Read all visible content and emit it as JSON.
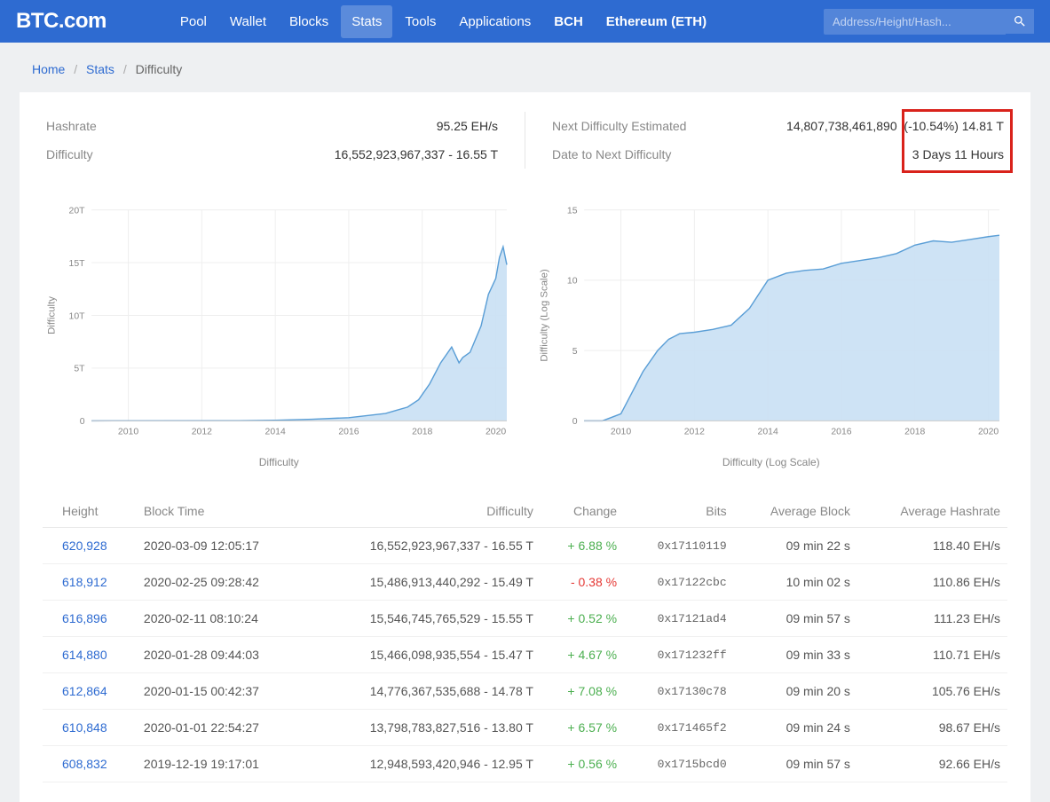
{
  "header": {
    "logo": "BTC.com",
    "nav": [
      "Pool",
      "Wallet",
      "Blocks",
      "Stats",
      "Tools",
      "Applications",
      "BCH",
      "Ethereum (ETH)"
    ],
    "active_nav": 3,
    "bold_nav": [
      6,
      7
    ],
    "search_placeholder": "Address/Height/Hash..."
  },
  "breadcrumbs": {
    "home": "Home",
    "stats": "Stats",
    "current": "Difficulty"
  },
  "stats": {
    "hashrate_label": "Hashrate",
    "hashrate_value": "95.25 EH/s",
    "difficulty_label": "Difficulty",
    "difficulty_value": "16,552,923,967,337 - 16.55 T",
    "next_diff_label": "Next Difficulty Estimated",
    "next_diff_raw": "14,807,738,461,890",
    "next_diff_change": "(-10.54%) 14.81 T",
    "date_next_label": "Date to Next Difficulty",
    "date_next_value": "3 Days 11 Hours"
  },
  "chart1": {
    "type": "area",
    "title": "Difficulty",
    "y_label": "Difficulty",
    "y_ticks": [
      "0",
      "5T",
      "10T",
      "15T",
      "20T"
    ],
    "x_ticks": [
      "2010",
      "2012",
      "2014",
      "2016",
      "2018",
      "2020"
    ],
    "ylim": [
      0,
      20
    ],
    "xlim": [
      2009,
      2020.3
    ],
    "background": "#ffffff",
    "area_color": "#c9e0f4",
    "line_color": "#5a9ed6",
    "grid_color": "#eeeeee",
    "text_color": "#888888",
    "label_fontsize": 12,
    "tick_fontsize": 11,
    "data": [
      [
        2009,
        0
      ],
      [
        2013,
        0.01
      ],
      [
        2014,
        0.05
      ],
      [
        2015,
        0.15
      ],
      [
        2016,
        0.3
      ],
      [
        2016.5,
        0.5
      ],
      [
        2017,
        0.7
      ],
      [
        2017.3,
        1.0
      ],
      [
        2017.6,
        1.3
      ],
      [
        2017.9,
        2.0
      ],
      [
        2018.2,
        3.5
      ],
      [
        2018.5,
        5.5
      ],
      [
        2018.8,
        7.0
      ],
      [
        2019,
        5.5
      ],
      [
        2019.1,
        6.0
      ],
      [
        2019.3,
        6.5
      ],
      [
        2019.6,
        9.0
      ],
      [
        2019.8,
        12.0
      ],
      [
        2020,
        13.5
      ],
      [
        2020.1,
        15.5
      ],
      [
        2020.2,
        16.5
      ],
      [
        2020.3,
        14.8
      ]
    ]
  },
  "chart2": {
    "type": "area",
    "title": "Difficulty (Log Scale)",
    "y_label": "Difficulty (Log Scale)",
    "y_ticks": [
      "0",
      "5",
      "10",
      "15"
    ],
    "x_ticks": [
      "2010",
      "2012",
      "2014",
      "2016",
      "2018",
      "2020"
    ],
    "ylim": [
      0,
      15
    ],
    "xlim": [
      2009,
      2020.3
    ],
    "background": "#ffffff",
    "area_color": "#c9e0f4",
    "line_color": "#5a9ed6",
    "grid_color": "#eeeeee",
    "text_color": "#888888",
    "label_fontsize": 12,
    "tick_fontsize": 11,
    "data": [
      [
        2009,
        0
      ],
      [
        2009.5,
        0
      ],
      [
        2010,
        0.5
      ],
      [
        2010.3,
        2.0
      ],
      [
        2010.6,
        3.5
      ],
      [
        2011,
        5.0
      ],
      [
        2011.3,
        5.8
      ],
      [
        2011.6,
        6.2
      ],
      [
        2012,
        6.3
      ],
      [
        2012.5,
        6.5
      ],
      [
        2013,
        6.8
      ],
      [
        2013.5,
        8.0
      ],
      [
        2014,
        10.0
      ],
      [
        2014.5,
        10.5
      ],
      [
        2015,
        10.7
      ],
      [
        2015.5,
        10.8
      ],
      [
        2016,
        11.2
      ],
      [
        2016.5,
        11.4
      ],
      [
        2017,
        11.6
      ],
      [
        2017.5,
        11.9
      ],
      [
        2018,
        12.5
      ],
      [
        2018.5,
        12.8
      ],
      [
        2019,
        12.7
      ],
      [
        2019.5,
        12.9
      ],
      [
        2020,
        13.1
      ],
      [
        2020.3,
        13.2
      ]
    ]
  },
  "table": {
    "columns": [
      "Height",
      "Block Time",
      "Difficulty",
      "Change",
      "Bits",
      "Average Block",
      "Average Hashrate"
    ],
    "rows": [
      {
        "height": "620,928",
        "time": "2020-03-09 12:05:17",
        "diff": "16,552,923,967,337 - 16.55 T",
        "change": "+ 6.88 %",
        "change_sign": "pos",
        "bits": "0x17110119",
        "avg_block": "09 min 22 s",
        "avg_hash": "118.40 EH/s"
      },
      {
        "height": "618,912",
        "time": "2020-02-25 09:28:42",
        "diff": "15,486,913,440,292 - 15.49 T",
        "change": "- 0.38 %",
        "change_sign": "neg",
        "bits": "0x17122cbc",
        "avg_block": "10 min 02 s",
        "avg_hash": "110.86 EH/s"
      },
      {
        "height": "616,896",
        "time": "2020-02-11 08:10:24",
        "diff": "15,546,745,765,529 - 15.55 T",
        "change": "+ 0.52 %",
        "change_sign": "pos",
        "bits": "0x17121ad4",
        "avg_block": "09 min 57 s",
        "avg_hash": "111.23 EH/s"
      },
      {
        "height": "614,880",
        "time": "2020-01-28 09:44:03",
        "diff": "15,466,098,935,554 - 15.47 T",
        "change": "+ 4.67 %",
        "change_sign": "pos",
        "bits": "0x171232ff",
        "avg_block": "09 min 33 s",
        "avg_hash": "110.71 EH/s"
      },
      {
        "height": "612,864",
        "time": "2020-01-15 00:42:37",
        "diff": "14,776,367,535,688 - 14.78 T",
        "change": "+ 7.08 %",
        "change_sign": "pos",
        "bits": "0x17130c78",
        "avg_block": "09 min 20 s",
        "avg_hash": "105.76 EH/s"
      },
      {
        "height": "610,848",
        "time": "2020-01-01 22:54:27",
        "diff": "13,798,783,827,516 - 13.80 T",
        "change": "+ 6.57 %",
        "change_sign": "pos",
        "bits": "0x171465f2",
        "avg_block": "09 min 24 s",
        "avg_hash": "98.67 EH/s"
      },
      {
        "height": "608,832",
        "time": "2019-12-19 19:17:01",
        "diff": "12,948,593,420,946 - 12.95 T",
        "change": "+ 0.56 %",
        "change_sign": "pos",
        "bits": "0x1715bcd0",
        "avg_block": "09 min 57 s",
        "avg_hash": "92.66 EH/s"
      }
    ]
  }
}
